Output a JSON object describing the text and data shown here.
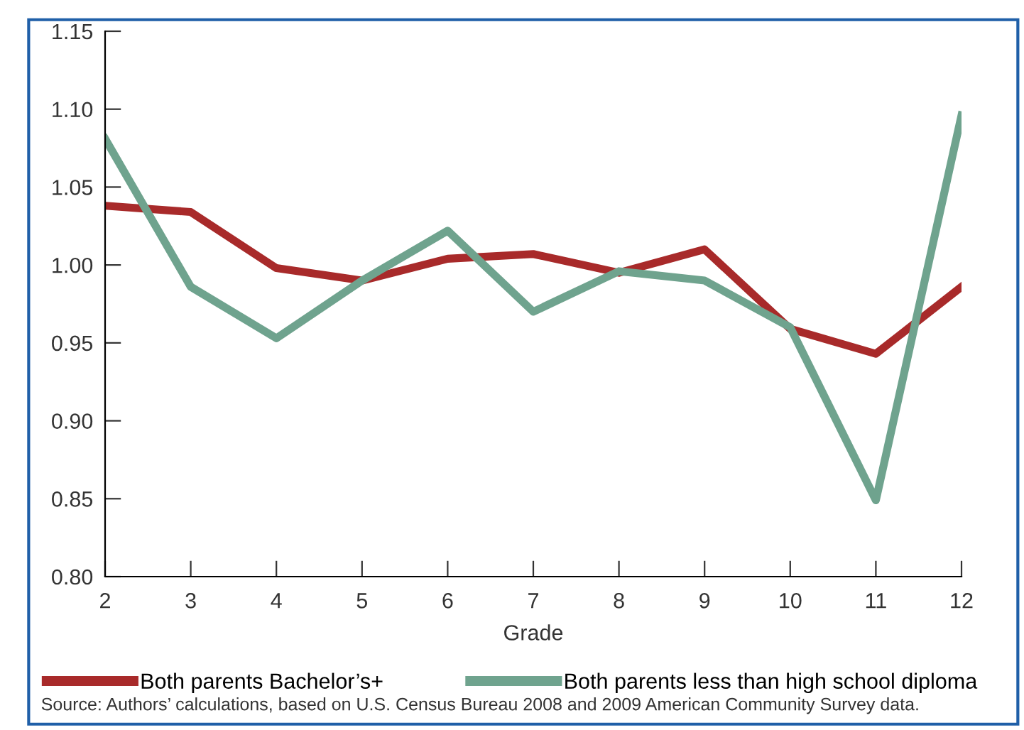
{
  "chart_data": {
    "type": "line",
    "xlabel": "Grade",
    "x": [
      2,
      3,
      4,
      5,
      6,
      7,
      8,
      9,
      10,
      11,
      12
    ],
    "xlim": [
      2,
      12
    ],
    "xticks": [
      2,
      3,
      4,
      5,
      6,
      7,
      8,
      9,
      10,
      11,
      12
    ],
    "ylim": [
      0.8,
      1.15
    ],
    "yticks": [
      {
        "value": 0.8,
        "label": "0.80"
      },
      {
        "value": 0.85,
        "label": "0.85"
      },
      {
        "value": 0.9,
        "label": "0.90"
      },
      {
        "value": 0.95,
        "label": "0.95"
      },
      {
        "value": 1.0,
        "label": "1.00"
      },
      {
        "value": 1.05,
        "label": "1.05"
      },
      {
        "value": 1.1,
        "label": "1.10"
      },
      {
        "value": 1.15,
        "label": "1.15"
      }
    ],
    "series": [
      {
        "name": "Both parents Bachelor’s+",
        "color": "#a82a2a",
        "values": [
          1.038,
          1.034,
          0.998,
          0.99,
          1.004,
          1.007,
          0.995,
          1.01,
          0.959,
          0.943,
          0.986
        ]
      },
      {
        "name": "Both parents less than high school diploma",
        "color": "#6fa38e",
        "values": [
          1.081,
          0.986,
          0.953,
          0.99,
          1.022,
          0.97,
          0.996,
          0.99,
          0.96,
          0.849,
          1.096
        ]
      }
    ],
    "legend": "bottom",
    "grid": false,
    "marker": "none",
    "line_style": "solid",
    "annotations": [
      "Source: Authors’ calculations, based on U.S. Census Bureau 2008 and 2009 American Community Survey data."
    ]
  }
}
